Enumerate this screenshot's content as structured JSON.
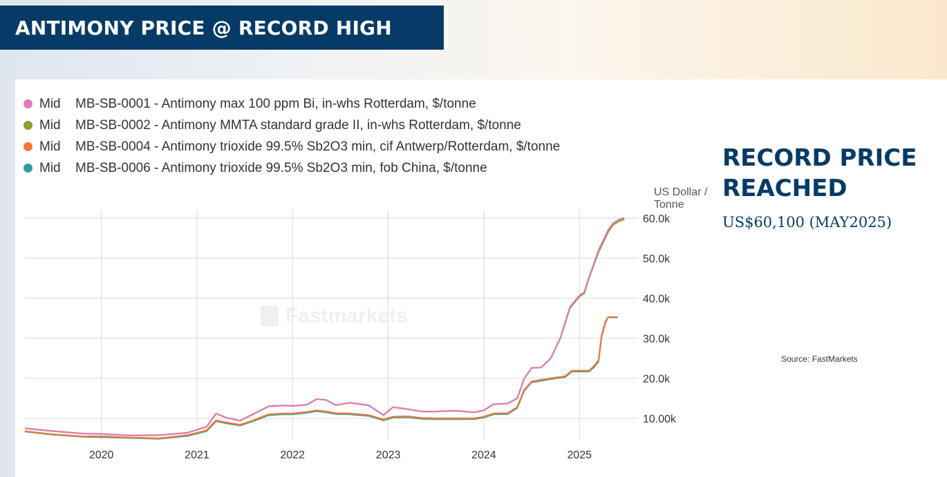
{
  "header": {
    "title": "ANTIMONY PRICE @ RECORD HIGH"
  },
  "callout": {
    "title_line1": "RECORD PRICE",
    "title_line2": "REACHED",
    "subtitle": "US$60,100 (MAY2025)"
  },
  "source": "Source: FastMarkets",
  "watermark": "Fastmarkets",
  "legend_prefix": "Mid",
  "colors": {
    "pink": "#e07bb4",
    "olive": "#8aa02a",
    "orange": "#f07a3a",
    "teal": "#2f9d9b",
    "header_bg": "#053b66"
  },
  "chart_data": {
    "type": "line",
    "ylabel_line1": "US Dollar /",
    "ylabel_line2": "Tonne",
    "y_ticks": [
      {
        "value": 10000,
        "label": "10.00k"
      },
      {
        "value": 20000,
        "label": "20.0k"
      },
      {
        "value": 30000,
        "label": "30.0k"
      },
      {
        "value": 40000,
        "label": "40.0k"
      },
      {
        "value": 50000,
        "label": "50.0k"
      },
      {
        "value": 60000,
        "label": "60.0k"
      }
    ],
    "x_ticks": [
      2020,
      2021,
      2022,
      2023,
      2024,
      2025
    ],
    "xlim": [
      2019.2,
      2025.62
    ],
    "ylim": [
      4000,
      61000
    ],
    "grid": true,
    "legend_position": "top-left",
    "series": [
      {
        "name": "MB-SB-0001 - Antimony max 100 ppm Bi, in-whs Rotterdam, $/tonne",
        "color_key": "pink",
        "points": [
          [
            2019.2,
            7500
          ],
          [
            2019.5,
            6800
          ],
          [
            2019.8,
            6200
          ],
          [
            2020.0,
            6100
          ],
          [
            2020.3,
            5700
          ],
          [
            2020.6,
            5800
          ],
          [
            2020.9,
            6400
          ],
          [
            2021.1,
            7900
          ],
          [
            2021.2,
            11200
          ],
          [
            2021.3,
            10200
          ],
          [
            2021.45,
            9400
          ],
          [
            2021.6,
            11200
          ],
          [
            2021.75,
            13000
          ],
          [
            2021.9,
            13200
          ],
          [
            2022.0,
            13100
          ],
          [
            2022.15,
            13400
          ],
          [
            2022.25,
            14800
          ],
          [
            2022.35,
            14600
          ],
          [
            2022.45,
            13300
          ],
          [
            2022.6,
            13900
          ],
          [
            2022.8,
            13200
          ],
          [
            2022.95,
            10800
          ],
          [
            2023.05,
            12800
          ],
          [
            2023.2,
            12300
          ],
          [
            2023.35,
            11700
          ],
          [
            2023.5,
            11700
          ],
          [
            2023.7,
            11900
          ],
          [
            2023.9,
            11500
          ],
          [
            2024.0,
            12000
          ],
          [
            2024.1,
            13500
          ],
          [
            2024.25,
            13700
          ],
          [
            2024.35,
            15000
          ],
          [
            2024.42,
            19800
          ],
          [
            2024.5,
            22600
          ],
          [
            2024.6,
            22700
          ],
          [
            2024.7,
            25000
          ],
          [
            2024.8,
            30000
          ],
          [
            2024.9,
            37800
          ],
          [
            2025.0,
            40700
          ],
          [
            2025.05,
            41500
          ],
          [
            2025.1,
            45200
          ],
          [
            2025.15,
            48600
          ],
          [
            2025.2,
            52000
          ],
          [
            2025.25,
            54500
          ],
          [
            2025.3,
            57000
          ],
          [
            2025.35,
            58700
          ],
          [
            2025.42,
            59700
          ],
          [
            2025.47,
            60100
          ]
        ]
      },
      {
        "name": "MB-SB-0002 - Antimony MMTA standard grade II, in-whs Rotterdam, $/tonne",
        "color_key": "olive",
        "points": [
          [
            2019.2,
            7500
          ],
          [
            2019.5,
            6800
          ],
          [
            2019.8,
            6200
          ],
          [
            2020.0,
            6100
          ],
          [
            2020.3,
            5700
          ],
          [
            2020.6,
            5800
          ],
          [
            2020.9,
            6400
          ],
          [
            2021.1,
            7900
          ],
          [
            2021.2,
            11200
          ],
          [
            2021.3,
            10200
          ],
          [
            2021.45,
            9400
          ],
          [
            2021.6,
            11200
          ],
          [
            2021.75,
            13000
          ],
          [
            2021.9,
            13200
          ],
          [
            2022.0,
            13100
          ],
          [
            2022.15,
            13400
          ],
          [
            2022.25,
            14800
          ],
          [
            2022.35,
            14600
          ],
          [
            2022.45,
            13300
          ],
          [
            2022.6,
            13900
          ],
          [
            2022.8,
            13200
          ],
          [
            2022.95,
            10800
          ],
          [
            2023.05,
            12800
          ],
          [
            2023.2,
            12300
          ],
          [
            2023.35,
            11700
          ],
          [
            2023.5,
            11700
          ],
          [
            2023.7,
            11900
          ],
          [
            2023.9,
            11500
          ],
          [
            2024.0,
            12000
          ],
          [
            2024.1,
            13500
          ],
          [
            2024.25,
            13700
          ],
          [
            2024.35,
            15000
          ],
          [
            2024.42,
            19800
          ],
          [
            2024.5,
            22600
          ],
          [
            2024.6,
            22700
          ],
          [
            2024.7,
            25000
          ],
          [
            2024.8,
            30000
          ],
          [
            2024.9,
            37500
          ],
          [
            2025.0,
            40400
          ],
          [
            2025.05,
            41200
          ],
          [
            2025.1,
            45000
          ],
          [
            2025.15,
            48300
          ],
          [
            2025.2,
            51500
          ],
          [
            2025.25,
            54000
          ],
          [
            2025.3,
            56500
          ],
          [
            2025.35,
            58300
          ],
          [
            2025.42,
            59300
          ],
          [
            2025.47,
            59700
          ]
        ]
      },
      {
        "name": "MB-SB-0004 - Antimony trioxide 99.5% Sb2O3 min, cif Antwerp/Rotterdam, $/tonne",
        "color_key": "orange",
        "points": [
          [
            2019.2,
            6800
          ],
          [
            2019.5,
            6000
          ],
          [
            2019.8,
            5500
          ],
          [
            2020.0,
            5500
          ],
          [
            2020.3,
            5200
          ],
          [
            2020.6,
            5000
          ],
          [
            2020.9,
            5800
          ],
          [
            2021.1,
            7000
          ],
          [
            2021.2,
            9500
          ],
          [
            2021.3,
            9000
          ],
          [
            2021.45,
            8400
          ],
          [
            2021.6,
            9600
          ],
          [
            2021.75,
            11000
          ],
          [
            2021.9,
            11200
          ],
          [
            2022.0,
            11200
          ],
          [
            2022.15,
            11600
          ],
          [
            2022.25,
            12000
          ],
          [
            2022.35,
            11700
          ],
          [
            2022.45,
            11300
          ],
          [
            2022.6,
            11200
          ],
          [
            2022.8,
            10800
          ],
          [
            2022.95,
            9700
          ],
          [
            2023.05,
            10400
          ],
          [
            2023.2,
            10500
          ],
          [
            2023.35,
            10100
          ],
          [
            2023.5,
            10000
          ],
          [
            2023.7,
            10000
          ],
          [
            2023.9,
            10000
          ],
          [
            2024.0,
            10400
          ],
          [
            2024.1,
            11200
          ],
          [
            2024.25,
            11300
          ],
          [
            2024.35,
            12800
          ],
          [
            2024.42,
            17000
          ],
          [
            2024.5,
            19200
          ],
          [
            2024.7,
            20000
          ],
          [
            2024.85,
            20500
          ],
          [
            2024.92,
            21900
          ],
          [
            2025.1,
            21900
          ],
          [
            2025.15,
            23000
          ],
          [
            2025.2,
            24500
          ],
          [
            2025.23,
            30500
          ],
          [
            2025.27,
            34000
          ],
          [
            2025.3,
            35300
          ],
          [
            2025.4,
            35300
          ]
        ]
      },
      {
        "name": "MB-SB-0006 - Antimony trioxide 99.5% Sb2O3 min, fob China, $/tonne",
        "color_key": "teal",
        "points": [
          [
            2019.2,
            6700
          ],
          [
            2019.5,
            5900
          ],
          [
            2019.8,
            5400
          ],
          [
            2020.0,
            5300
          ],
          [
            2020.3,
            5100
          ],
          [
            2020.6,
            4900
          ],
          [
            2020.9,
            5600
          ],
          [
            2021.1,
            6800
          ],
          [
            2021.2,
            9300
          ],
          [
            2021.3,
            8800
          ],
          [
            2021.45,
            8200
          ],
          [
            2021.6,
            9400
          ],
          [
            2021.75,
            10800
          ],
          [
            2021.9,
            11000
          ],
          [
            2022.0,
            11000
          ],
          [
            2022.15,
            11400
          ],
          [
            2022.25,
            11800
          ],
          [
            2022.35,
            11500
          ],
          [
            2022.45,
            11100
          ],
          [
            2022.6,
            11000
          ],
          [
            2022.8,
            10600
          ],
          [
            2022.95,
            9500
          ],
          [
            2023.05,
            10200
          ],
          [
            2023.2,
            10300
          ],
          [
            2023.35,
            9900
          ],
          [
            2023.5,
            9800
          ],
          [
            2023.7,
            9800
          ],
          [
            2023.9,
            9800
          ],
          [
            2024.0,
            10200
          ],
          [
            2024.1,
            11000
          ],
          [
            2024.25,
            11100
          ],
          [
            2024.35,
            12600
          ],
          [
            2024.42,
            16800
          ],
          [
            2024.5,
            19000
          ],
          [
            2024.7,
            19800
          ],
          [
            2024.85,
            20300
          ],
          [
            2024.92,
            21700
          ],
          [
            2025.1,
            21700
          ],
          [
            2025.15,
            22700
          ],
          [
            2025.2,
            24200
          ],
          [
            2025.23,
            30200
          ],
          [
            2025.27,
            33800
          ],
          [
            2025.3,
            35200
          ],
          [
            2025.4,
            35200
          ]
        ]
      }
    ]
  }
}
